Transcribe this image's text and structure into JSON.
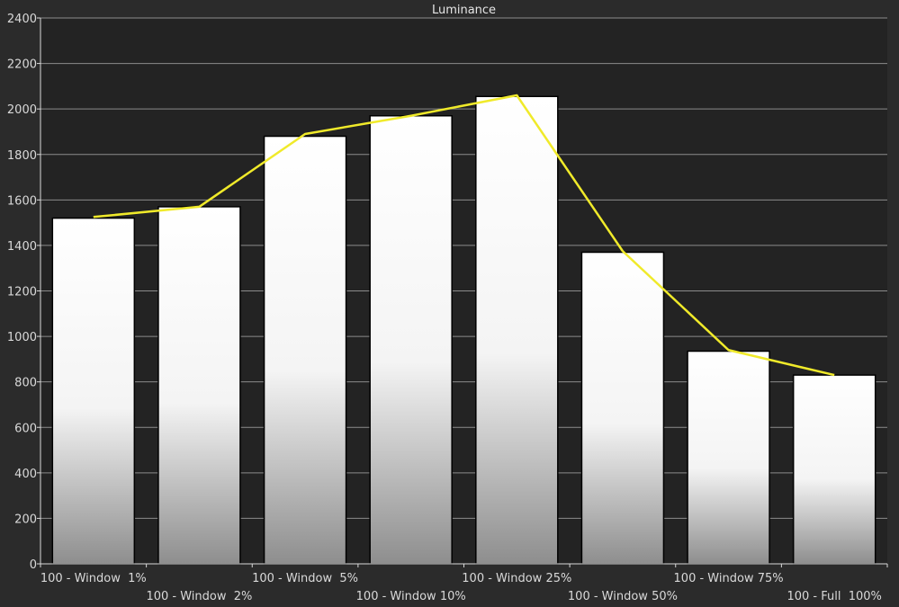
{
  "chart_data": {
    "type": "bar",
    "title": "Luminance",
    "xlabel": "",
    "ylabel": "",
    "ylim": [
      0,
      2400
    ],
    "yticks": [
      0,
      200,
      400,
      600,
      800,
      1000,
      1200,
      1400,
      1600,
      1800,
      2000,
      2200,
      2400
    ],
    "grid": true,
    "categories": [
      "100 - Window  1%",
      "100 - Window  2%",
      "100 - Window  5%",
      "100 - Window 10%",
      "100 - Window 25%",
      "100 - Window 50%",
      "100 - Window 75%",
      "100 - Full  100%"
    ],
    "series": [
      {
        "type": "bar",
        "values": [
          1520,
          1570,
          1880,
          1970,
          2055,
          1370,
          935,
          830
        ]
      },
      {
        "type": "line",
        "values": [
          1525,
          1570,
          1890,
          1970,
          2060,
          1375,
          940,
          830
        ]
      }
    ],
    "colors": {
      "background": "#2b2b2b",
      "plot_background": "#232323",
      "grid": "#8c8c8c",
      "axis_text": "#d9d9d9",
      "bar_top": "#ffffff",
      "bar_bottom": "#8a8a8a",
      "line": "#f0ea2a"
    }
  }
}
